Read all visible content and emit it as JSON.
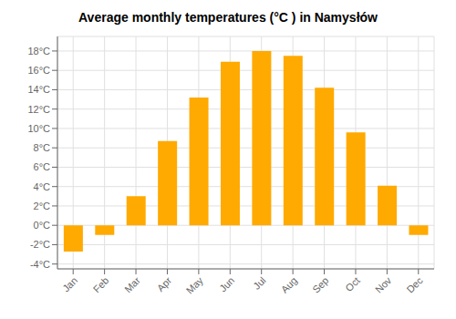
{
  "chart_data": {
    "type": "bar",
    "title": "Average monthly temperatures (°C ) in Namysłów",
    "categories": [
      "Jan",
      "Feb",
      "Mar",
      "Apr",
      "May",
      "Jun",
      "Jul",
      "Aug",
      "Sep",
      "Oct",
      "Nov",
      "Dec"
    ],
    "values": [
      -2.7,
      -1.0,
      3.0,
      8.7,
      13.2,
      16.9,
      18.0,
      17.5,
      14.2,
      9.6,
      4.1,
      -1.0
    ],
    "color": "#FFAA00",
    "ylim": [
      -4.5,
      19.5
    ],
    "yticks": [
      {
        "value": -4,
        "label": "-4°C"
      },
      {
        "value": -2,
        "label": "-2°C"
      },
      {
        "value": 0,
        "label": "0°C"
      },
      {
        "value": 2,
        "label": "2°C"
      },
      {
        "value": 4,
        "label": "4°C"
      },
      {
        "value": 6,
        "label": "6°C"
      },
      {
        "value": 8,
        "label": "8°C"
      },
      {
        "value": 10,
        "label": "10°C"
      },
      {
        "value": 12,
        "label": "12°C"
      },
      {
        "value": 14,
        "label": "14°C"
      },
      {
        "value": 16,
        "label": "16°C"
      },
      {
        "value": 18,
        "label": "18°C"
      }
    ],
    "grid": true
  }
}
